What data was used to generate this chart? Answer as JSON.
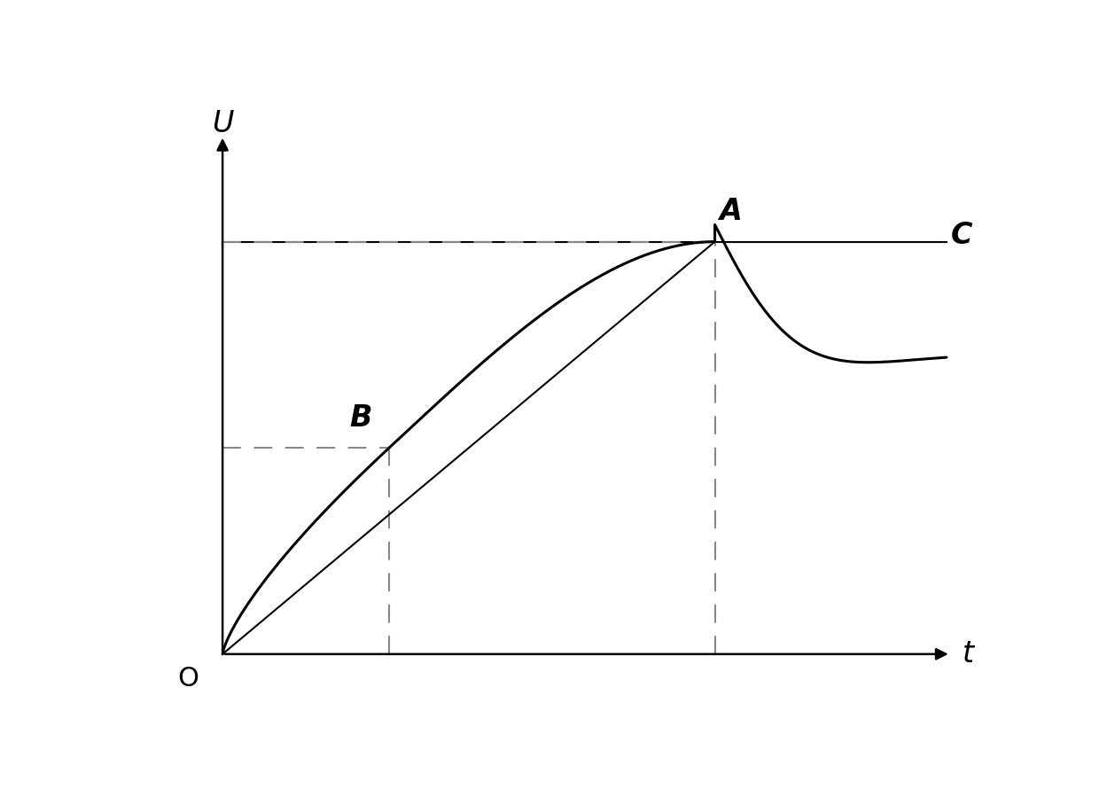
{
  "title": "",
  "xlabel": "t",
  "ylabel": "U",
  "origin_label": "O",
  "fig_width": 12.4,
  "fig_height": 8.99,
  "dpi": 100,
  "background_color": "#ffffff",
  "axis_color": "#000000",
  "curve_color": "#000000",
  "dashed_color": "#888888",
  "label_A": "A",
  "label_B": "B",
  "label_C": "C",
  "point_A": [
    0.68,
    0.8
  ],
  "point_B": [
    0.23,
    0.4
  ],
  "uc_level": 0.8,
  "ub_level": 0.4,
  "settle_level": 0.58
}
